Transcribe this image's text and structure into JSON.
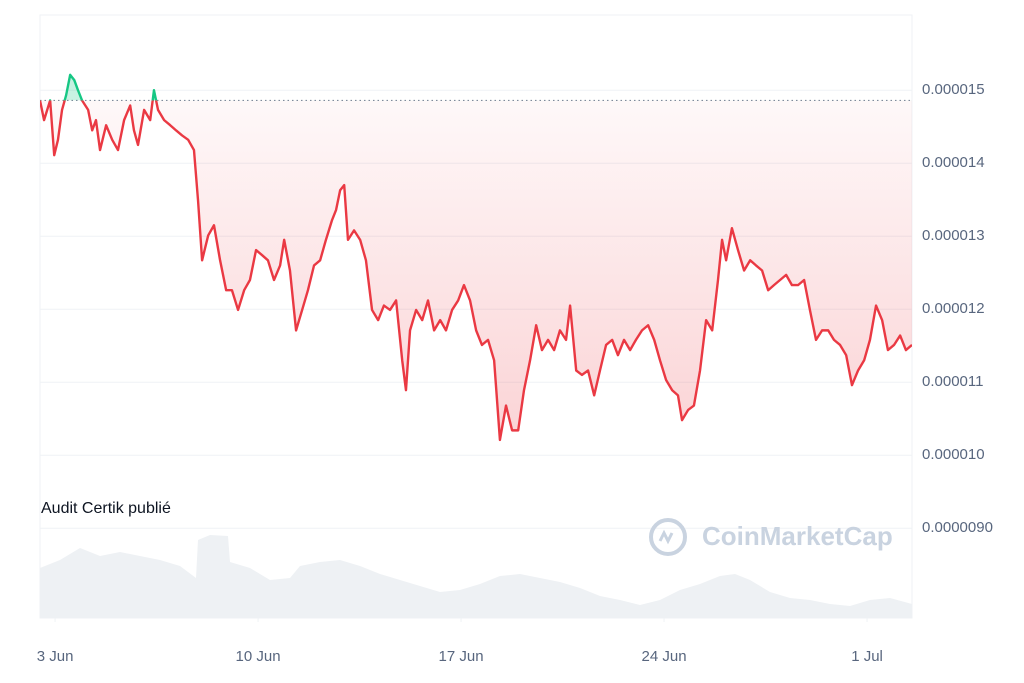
{
  "chart_data": {
    "type": "line",
    "annotation": "Audit Certik publié",
    "watermark": "CoinMarketCap",
    "baseline": 1.486e-05,
    "xlim": [
      2.48,
      32.55
    ],
    "xticks": [
      {
        "value": 3,
        "label": "3 Jun"
      },
      {
        "value": 10,
        "label": "10 Jun"
      },
      {
        "value": 17,
        "label": "17 Jun"
      },
      {
        "value": 24,
        "label": "24 Jun"
      },
      {
        "value": 31,
        "label": "1 Jul"
      }
    ],
    "ylim": [
      7.77e-06,
      1.603e-05
    ],
    "yticks": [
      {
        "value": 9e-06,
        "label": "0.0000090"
      },
      {
        "value": 1e-05,
        "label": "0.000010"
      },
      1.1e-05,
      1.2e-05,
      1.3e-05,
      1.4e-05,
      1.5e-05
    ],
    "grid": true,
    "series": [
      {
        "color": "#ea3943",
        "color_above": "#16c784",
        "x": [
          2.48,
          2.62,
          2.83,
          2.97,
          3.1,
          3.24,
          3.38,
          3.52,
          3.66,
          3.79,
          3.93,
          4.14,
          4.28,
          4.41,
          4.55,
          4.76,
          4.97,
          5.17,
          5.38,
          5.59,
          5.72,
          5.86,
          6.07,
          6.28,
          6.41,
          6.55,
          6.76,
          6.97,
          7.17,
          7.38,
          7.59,
          7.79,
          7.93,
          8.07,
          8.28,
          8.48,
          8.69,
          8.9,
          9.1,
          9.31,
          9.52,
          9.72,
          9.93,
          10.14,
          10.34,
          10.55,
          10.76,
          10.9,
          11.1,
          11.31,
          11.52,
          11.72,
          11.93,
          12.14,
          12.34,
          12.55,
          12.69,
          12.83,
          12.97,
          13.1,
          13.31,
          13.52,
          13.72,
          13.93,
          14.14,
          14.34,
          14.55,
          14.76,
          14.97,
          15.1,
          15.24,
          15.45,
          15.66,
          15.86,
          16.07,
          16.28,
          16.48,
          16.69,
          16.9,
          17.1,
          17.31,
          17.52,
          17.72,
          17.93,
          18.14,
          18.34,
          18.55,
          18.76,
          18.97,
          19.17,
          19.38,
          19.59,
          19.79,
          20.0,
          20.21,
          20.41,
          20.62,
          20.76,
          20.97,
          21.17,
          21.38,
          21.59,
          21.79,
          22.0,
          22.21,
          22.41,
          22.62,
          22.83,
          23.03,
          23.24,
          23.45,
          23.66,
          23.86,
          24.07,
          24.28,
          24.48,
          24.62,
          24.83,
          25.03,
          25.24,
          25.45,
          25.66,
          25.86,
          26.0,
          26.14,
          26.34,
          26.55,
          26.76,
          26.97,
          27.17,
          27.38,
          27.59,
          27.79,
          28.0,
          28.21,
          28.41,
          28.62,
          28.83,
          29.03,
          29.24,
          29.45,
          29.66,
          29.86,
          30.07,
          30.28,
          30.48,
          30.69,
          30.9,
          31.1,
          31.31,
          31.52,
          31.72,
          31.93,
          32.14,
          32.34,
          32.55
        ],
        "values": [
          1.486e-05,
          1.459e-05,
          1.486e-05,
          1.411e-05,
          1.432e-05,
          1.473e-05,
          1.493e-05,
          1.521e-05,
          1.514e-05,
          1.5e-05,
          1.486e-05,
          1.473e-05,
          1.445e-05,
          1.459e-05,
          1.418e-05,
          1.452e-05,
          1.432e-05,
          1.418e-05,
          1.459e-05,
          1.479e-05,
          1.445e-05,
          1.425e-05,
          1.473e-05,
          1.459e-05,
          1.5e-05,
          1.473e-05,
          1.459e-05,
          1.452e-05,
          1.445e-05,
          1.438e-05,
          1.432e-05,
          1.418e-05,
          1.349e-05,
          1.267e-05,
          1.301e-05,
          1.315e-05,
          1.267e-05,
          1.226e-05,
          1.226e-05,
          1.199e-05,
          1.226e-05,
          1.24e-05,
          1.281e-05,
          1.274e-05,
          1.267e-05,
          1.24e-05,
          1.26e-05,
          1.295e-05,
          1.253e-05,
          1.171e-05,
          1.199e-05,
          1.226e-05,
          1.26e-05,
          1.267e-05,
          1.295e-05,
          1.322e-05,
          1.336e-05,
          1.363e-05,
          1.37e-05,
          1.295e-05,
          1.308e-05,
          1.295e-05,
          1.267e-05,
          1.199e-05,
          1.185e-05,
          1.205e-05,
          1.199e-05,
          1.212e-05,
          1.13e-05,
          1.089e-05,
          1.171e-05,
          1.199e-05,
          1.185e-05,
          1.212e-05,
          1.171e-05,
          1.185e-05,
          1.171e-05,
          1.199e-05,
          1.212e-05,
          1.233e-05,
          1.212e-05,
          1.171e-05,
          1.151e-05,
          1.158e-05,
          1.13e-05,
          1.021e-05,
          1.068e-05,
          1.034e-05,
          1.034e-05,
          1.089e-05,
          1.13e-05,
          1.178e-05,
          1.144e-05,
          1.158e-05,
          1.144e-05,
          1.171e-05,
          1.158e-05,
          1.205e-05,
          1.116e-05,
          1.11e-05,
          1.116e-05,
          1.082e-05,
          1.116e-05,
          1.151e-05,
          1.158e-05,
          1.137e-05,
          1.158e-05,
          1.144e-05,
          1.158e-05,
          1.171e-05,
          1.178e-05,
          1.158e-05,
          1.13e-05,
          1.103e-05,
          1.089e-05,
          1.082e-05,
          1.048e-05,
          1.062e-05,
          1.068e-05,
          1.116e-05,
          1.185e-05,
          1.171e-05,
          1.24e-05,
          1.295e-05,
          1.267e-05,
          1.311e-05,
          1.281e-05,
          1.253e-05,
          1.267e-05,
          1.26e-05,
          1.253e-05,
          1.226e-05,
          1.233e-05,
          1.24e-05,
          1.247e-05,
          1.233e-05,
          1.233e-05,
          1.24e-05,
          1.199e-05,
          1.158e-05,
          1.171e-05,
          1.171e-05,
          1.158e-05,
          1.151e-05,
          1.137e-05,
          1.096e-05,
          1.116e-05,
          1.13e-05,
          1.158e-05,
          1.205e-05,
          1.185e-05,
          1.144e-05,
          1.151e-05,
          1.164e-05,
          1.144e-05,
          1.151e-05
        ]
      }
    ]
  }
}
